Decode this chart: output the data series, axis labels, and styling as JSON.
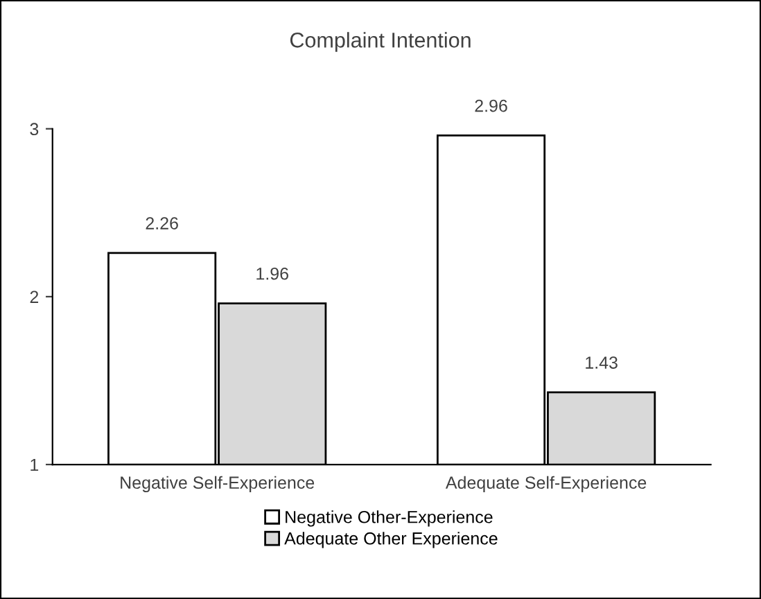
{
  "chart_data": {
    "type": "bar",
    "title": "Complaint Intention",
    "categories": [
      "Negative Self-Experience",
      "Adequate Self-Experience"
    ],
    "series": [
      {
        "name": "Negative Other-Experience",
        "color": "#ffffff",
        "values": [
          2.26,
          2.96
        ]
      },
      {
        "name": "Adequate Other Experience",
        "color": "#d9d9d9",
        "values": [
          1.96,
          1.43
        ]
      }
    ],
    "ylim": [
      1,
      3
    ],
    "yticks": [
      1,
      2,
      3
    ],
    "grid": false,
    "legend": "bottom",
    "data_labels": true
  }
}
